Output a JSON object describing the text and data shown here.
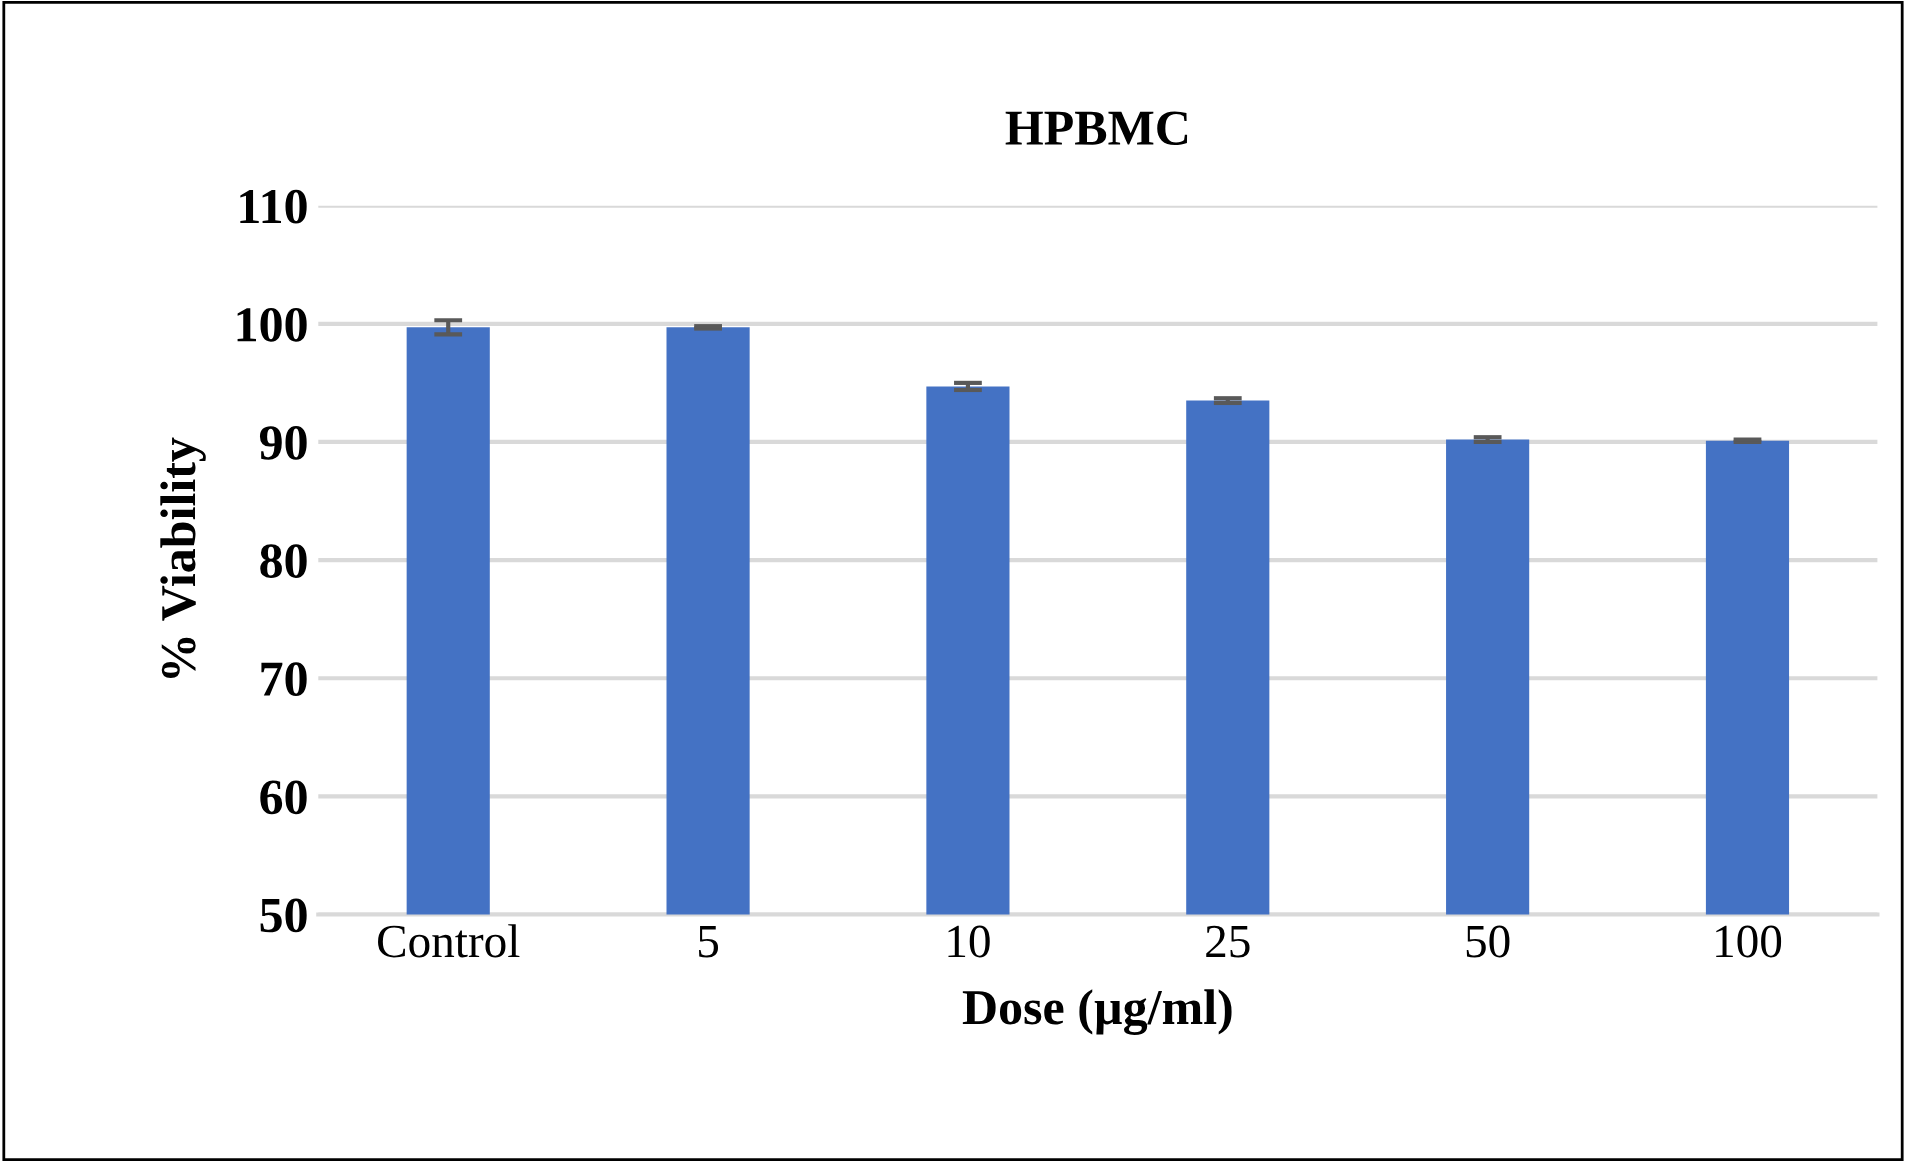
{
  "chart_data": {
    "type": "bar",
    "title": "HPBMC",
    "xlabel": "Dose (µg/ml)",
    "ylabel": "% Viability",
    "categories": [
      "Control",
      "5",
      "10",
      "25",
      "50",
      "100"
    ],
    "values": [
      99.7,
      99.7,
      94.7,
      93.5,
      90.2,
      90.1
    ],
    "errors": [
      0.6,
      0.1,
      0.3,
      0.2,
      0.2,
      0.1
    ],
    "color": "#4472c4",
    "ylim": [
      50,
      110
    ],
    "yticks": [
      50,
      60,
      70,
      80,
      90,
      100,
      110
    ],
    "grid": "y"
  }
}
